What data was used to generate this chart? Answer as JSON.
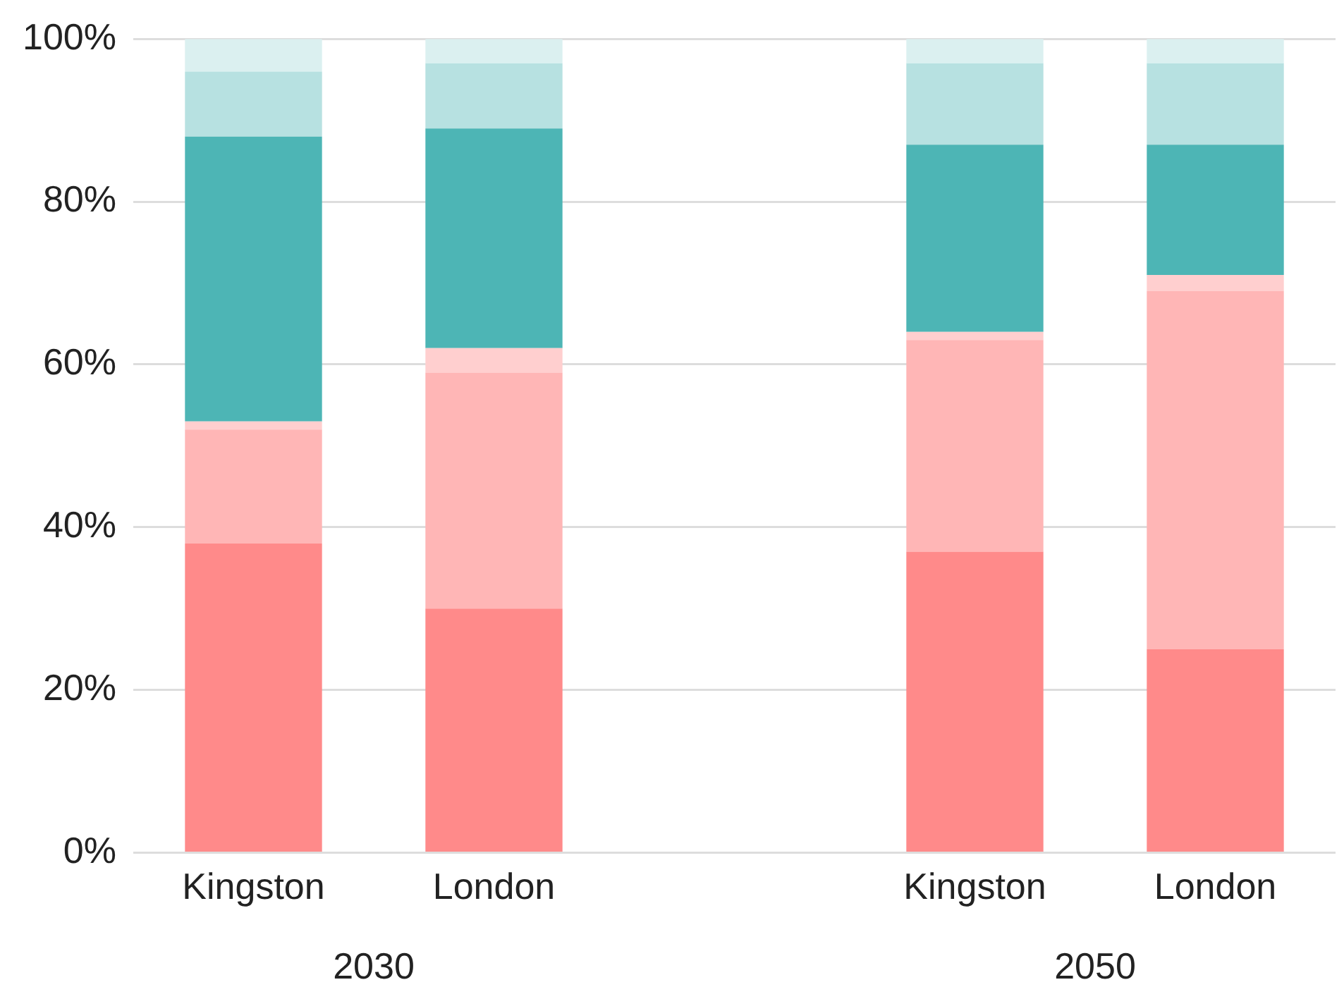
{
  "chart_data": {
    "type": "bar",
    "stacked": true,
    "categories": [
      "Kingston",
      "London",
      null,
      "Kingston",
      "London"
    ],
    "series": [
      {
        "color": "#ff8a8a",
        "values": [
          38,
          30,
          null,
          37,
          25
        ]
      },
      {
        "color": "#ffb6b6",
        "values": [
          14,
          29,
          null,
          26,
          44
        ]
      },
      {
        "color": "#ffcfcf",
        "values": [
          1,
          3,
          null,
          1,
          2
        ]
      },
      {
        "color": "#4db5b5",
        "values": [
          35,
          27,
          null,
          23,
          16
        ]
      },
      {
        "color": "#b7e1e1",
        "values": [
          8,
          8,
          null,
          10,
          10
        ]
      },
      {
        "color": "#dbf0f0",
        "values": [
          4,
          3,
          null,
          3,
          3
        ]
      }
    ],
    "ylim": [
      0,
      100
    ],
    "yticks": [
      {
        "value": 0,
        "label": "0%"
      },
      {
        "value": 20,
        "label": "20%"
      },
      {
        "value": 40,
        "label": "40%"
      },
      {
        "value": 60,
        "label": "60%"
      },
      {
        "value": 80,
        "label": "80%"
      },
      {
        "value": 100,
        "label": "100%"
      }
    ],
    "grid": "y",
    "legend": false,
    "annotations": [
      "2030",
      "2050"
    ]
  }
}
